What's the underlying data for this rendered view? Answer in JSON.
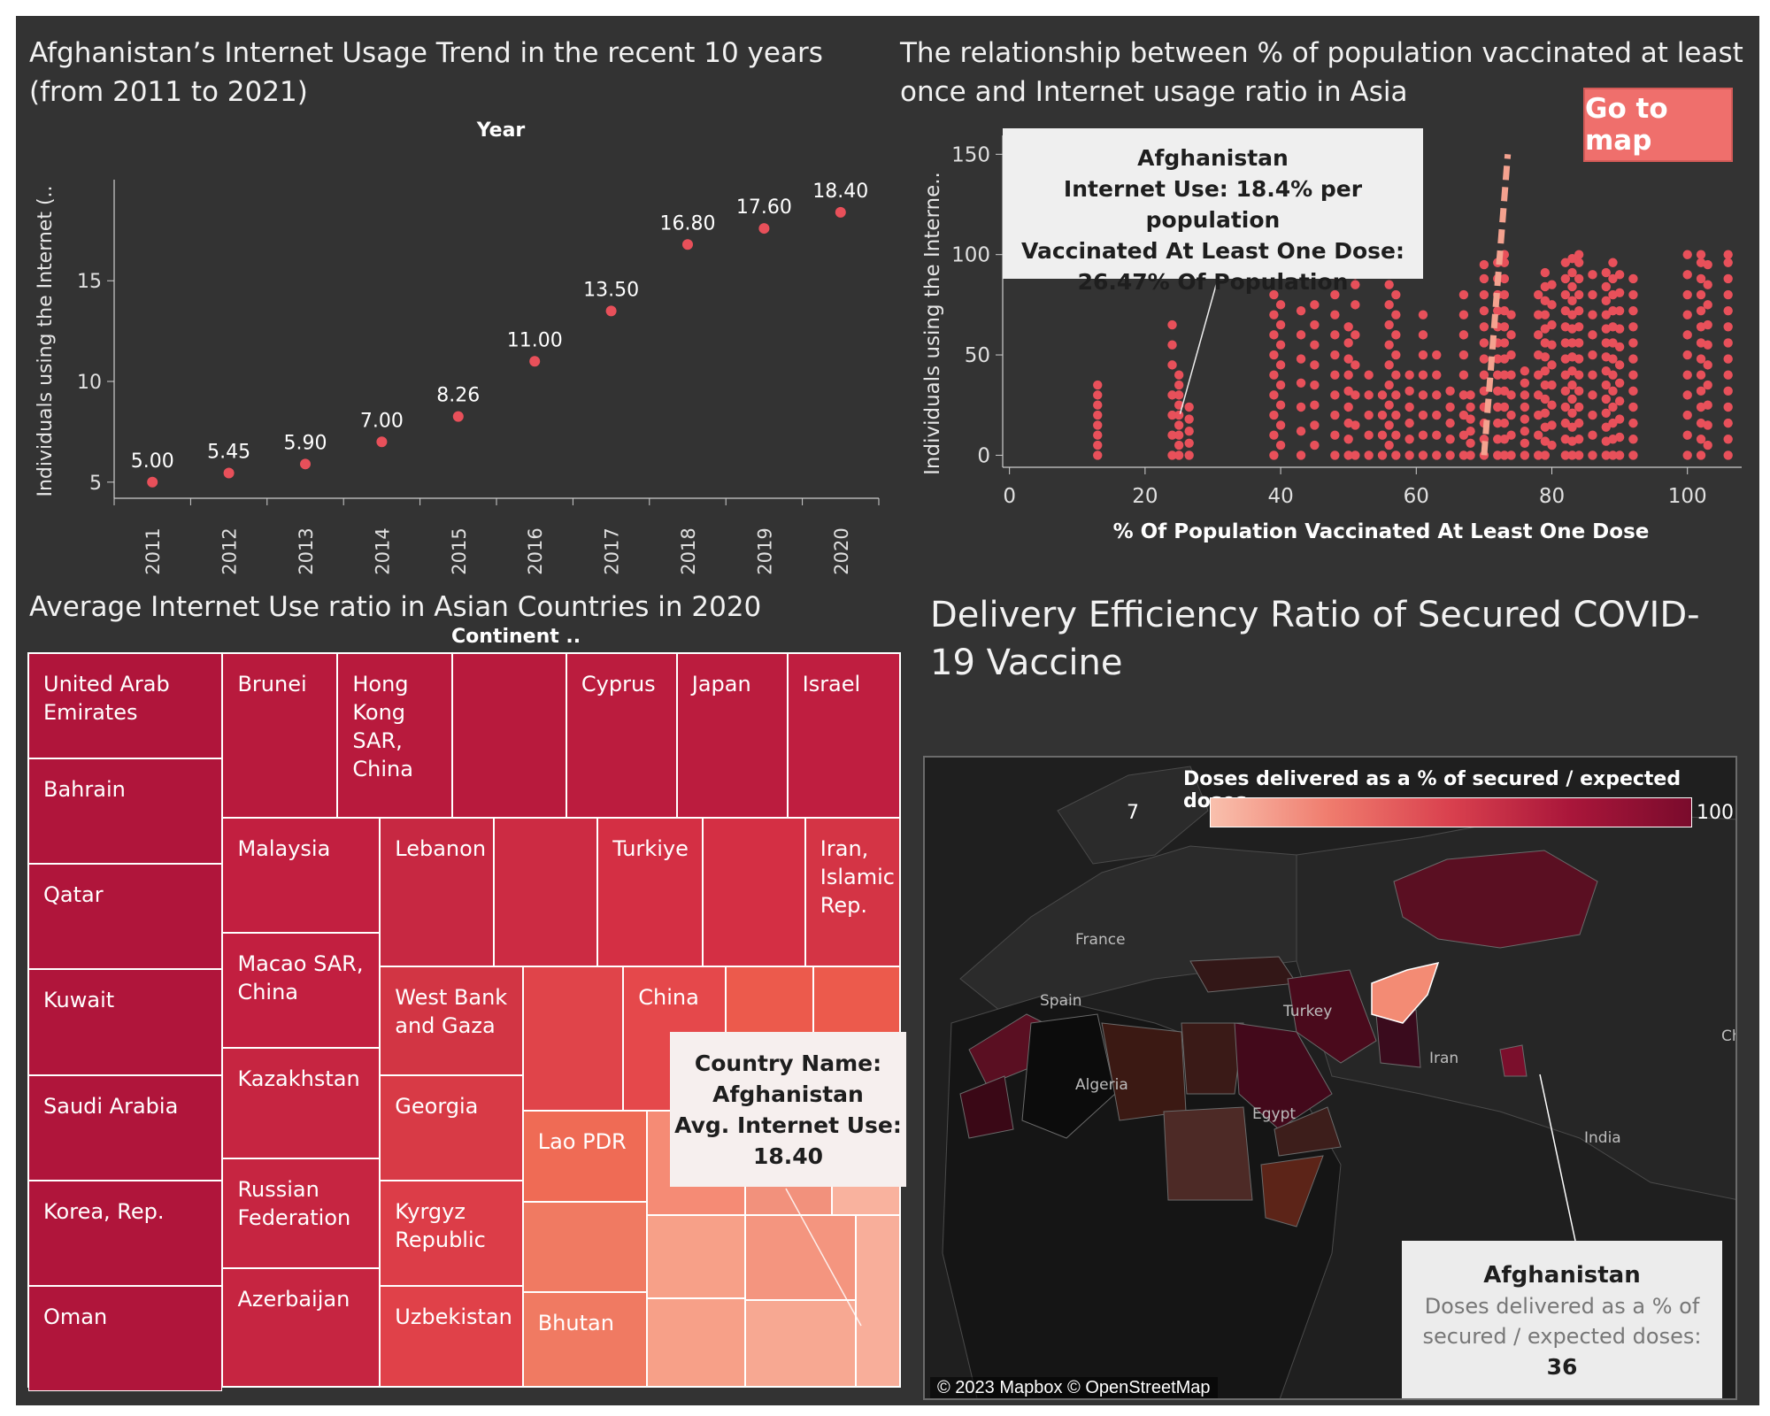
{
  "chart_data": [
    {
      "type": "scatter",
      "title": "Afghanistan’s Internet Usage Trend in the recent 10 years (from 2011 to 2021)",
      "column_header": "Year",
      "ylabel": "Individuals using the Internet (..",
      "x": [
        "2011",
        "2012",
        "2013",
        "2014",
        "2015",
        "2016",
        "2017",
        "2018",
        "2019",
        "2020"
      ],
      "values": [
        5.0,
        5.45,
        5.9,
        7.0,
        8.26,
        11.0,
        13.5,
        16.8,
        17.6,
        18.4
      ],
      "data_labels": [
        "5.00",
        "5.45",
        "5.90",
        "7.00",
        "8.26",
        "11.00",
        "13.50",
        "16.80",
        "17.60",
        "18.40"
      ],
      "y_ticks": [
        "5",
        "10",
        "15"
      ],
      "ylim": [
        4.2,
        19.8
      ],
      "color": "#e8505a"
    },
    {
      "type": "scatter",
      "title": "The relationship between % of population vaccinated at least once and Internet usage ratio in Asia",
      "xlabel": "% Of Population Vaccinated At Least One Dose",
      "ylabel": "Individuals using the Interne..",
      "x_ticks": [
        "0",
        "20",
        "40",
        "60",
        "80",
        "100"
      ],
      "y_ticks": [
        "0",
        "50",
        "100",
        "150"
      ],
      "xlim": [
        -1,
        108
      ],
      "ylim": [
        -6,
        155
      ],
      "columns": [
        {
          "x": 13,
          "y": [
            0,
            5,
            10,
            15,
            20,
            25,
            30,
            35
          ]
        },
        {
          "x": 24,
          "y": [
            0,
            10,
            20,
            30,
            45,
            55,
            65
          ]
        },
        {
          "x": 25,
          "y": [
            0,
            5,
            10,
            15,
            20,
            25,
            30,
            35,
            40
          ]
        },
        {
          "x": 26.5,
          "y": [
            0,
            6,
            12,
            18,
            24
          ]
        },
        {
          "x": 39,
          "y": [
            0,
            10,
            20,
            30,
            40,
            50,
            60,
            70,
            80
          ]
        },
        {
          "x": 40,
          "y": [
            5,
            15,
            25,
            35,
            45,
            55,
            65,
            75
          ]
        },
        {
          "x": 43,
          "y": [
            0,
            12,
            24,
            36,
            48,
            60,
            72
          ]
        },
        {
          "x": 45,
          "y": [
            5,
            15,
            25,
            35,
            45,
            55,
            65,
            75
          ]
        },
        {
          "x": 48,
          "y": [
            0,
            10,
            20,
            30,
            40,
            50,
            60,
            70,
            80,
            90
          ]
        },
        {
          "x": 50,
          "y": [
            0,
            8,
            16,
            24,
            32,
            40,
            48,
            56,
            64
          ]
        },
        {
          "x": 51,
          "y": [
            0,
            15,
            30,
            45,
            60,
            75,
            85,
            90
          ]
        },
        {
          "x": 53,
          "y": [
            0,
            10,
            20,
            30,
            40
          ]
        },
        {
          "x": 55,
          "y": [
            0,
            10,
            20,
            30
          ]
        },
        {
          "x": 56,
          "y": [
            5,
            15,
            25,
            35,
            45,
            55,
            65,
            75,
            85,
            92
          ]
        },
        {
          "x": 57,
          "y": [
            0,
            10,
            20,
            30,
            40,
            50,
            60,
            70,
            80
          ]
        },
        {
          "x": 59,
          "y": [
            0,
            8,
            16,
            24,
            32,
            40
          ]
        },
        {
          "x": 61,
          "y": [
            0,
            10,
            20,
            30,
            40,
            50,
            60,
            70
          ]
        },
        {
          "x": 63,
          "y": [
            0,
            10,
            20,
            30,
            40,
            50
          ]
        },
        {
          "x": 65,
          "y": [
            0,
            8,
            16,
            24,
            32
          ]
        },
        {
          "x": 67,
          "y": [
            0,
            10,
            20,
            30,
            40,
            50,
            60,
            70,
            80
          ]
        },
        {
          "x": 68,
          "y": [
            0,
            6,
            12,
            18,
            24,
            30
          ]
        },
        {
          "x": 70,
          "y": [
            0,
            8,
            16,
            24,
            32,
            40,
            48,
            56,
            64,
            72,
            80,
            88,
            95
          ]
        },
        {
          "x": 72,
          "y": [
            0,
            8,
            16,
            24,
            32,
            40,
            48,
            56,
            64,
            72,
            80,
            88,
            96
          ]
        },
        {
          "x": 73,
          "y": [
            0,
            8,
            16,
            24,
            32,
            40,
            48,
            56,
            64,
            72,
            80,
            88,
            96,
            100
          ]
        },
        {
          "x": 74,
          "y": [
            0,
            10,
            20,
            30,
            40,
            50,
            60,
            70
          ]
        },
        {
          "x": 76,
          "y": [
            0,
            6,
            12,
            18,
            24,
            30,
            36,
            42
          ]
        },
        {
          "x": 78,
          "y": [
            0,
            10,
            20,
            30,
            40,
            50,
            60,
            70,
            80
          ]
        },
        {
          "x": 79,
          "y": [
            0,
            7,
            14,
            21,
            28,
            35,
            42,
            49,
            56,
            63,
            70,
            77,
            84,
            91
          ]
        },
        {
          "x": 80,
          "y": [
            5,
            15,
            25,
            35,
            45,
            55,
            65,
            75,
            85
          ]
        },
        {
          "x": 82,
          "y": [
            0,
            8,
            16,
            24,
            32,
            40,
            48,
            56,
            64,
            72,
            80,
            88,
            96
          ]
        },
        {
          "x": 83,
          "y": [
            0,
            7,
            14,
            21,
            28,
            35,
            42,
            49,
            56,
            63,
            70,
            77,
            84,
            91,
            98
          ]
        },
        {
          "x": 84,
          "y": [
            0,
            8,
            16,
            24,
            32,
            40,
            48,
            56,
            64,
            72,
            80,
            88,
            96,
            100
          ]
        },
        {
          "x": 86,
          "y": [
            0,
            10,
            20,
            30,
            40,
            50,
            60,
            70,
            80,
            90
          ]
        },
        {
          "x": 88,
          "y": [
            0,
            7,
            14,
            21,
            28,
            35,
            42,
            49,
            56,
            63,
            70,
            77,
            84,
            91
          ]
        },
        {
          "x": 89,
          "y": [
            0,
            8,
            16,
            24,
            32,
            40,
            48,
            56,
            64,
            72,
            80,
            88,
            96
          ]
        },
        {
          "x": 90,
          "y": [
            0,
            9,
            18,
            27,
            36,
            45,
            54,
            63,
            72,
            81,
            90
          ]
        },
        {
          "x": 92,
          "y": [
            0,
            8,
            16,
            24,
            32,
            40,
            48,
            56,
            64,
            72,
            80,
            88
          ]
        },
        {
          "x": 100,
          "y": [
            0,
            10,
            20,
            30,
            40,
            50,
            60,
            70,
            80,
            90,
            100
          ]
        },
        {
          "x": 102,
          "y": [
            0,
            8,
            16,
            24,
            32,
            40,
            48,
            56,
            64,
            72,
            80,
            88,
            96,
            100
          ]
        },
        {
          "x": 103,
          "y": [
            5,
            15,
            25,
            35,
            45,
            55,
            65,
            75,
            85,
            95
          ]
        },
        {
          "x": 106,
          "y": [
            0,
            8,
            16,
            24,
            32,
            40,
            48,
            56,
            64,
            72,
            80,
            88,
            96,
            100
          ]
        }
      ],
      "trend_line": {
        "x1": 70,
        "y1": 0,
        "x2": 73.5,
        "y2": 150
      },
      "tooltip": [
        "Afghanistan",
        "Internet Use: 18.4% per population",
        "Vaccinated At Least One Dose:",
        "26.47% Of Population"
      ],
      "highlight": {
        "x": 26.47,
        "y": 18.4
      },
      "color": "#e8505a"
    },
    {
      "type": "treemap",
      "title": "Average Internet Use ratio in Asian Countries in 2020",
      "column_header": "Continent ..",
      "tooltip": [
        "Country Name:",
        "Afghanistan",
        "Avg. Internet Use:",
        "18.40"
      ],
      "cells": [
        {
          "label": "United Arab\nEmirates",
          "color": "#b0153b"
        },
        {
          "label": "Bahrain",
          "color": "#b0153b"
        },
        {
          "label": "Qatar",
          "color": "#b0153b"
        },
        {
          "label": "Kuwait",
          "color": "#b0153b"
        },
        {
          "label": "Saudi Arabia",
          "color": "#b0153b"
        },
        {
          "label": "Korea, Rep.",
          "color": "#b0153b"
        },
        {
          "label": "Oman",
          "color": "#b0153b"
        },
        {
          "label": "Brunei",
          "color": "#b81a3d"
        },
        {
          "label": "Hong\nKong\nSAR,\nChina",
          "color": "#b81a3d"
        },
        {
          "label": "",
          "color": "#b81a3d"
        },
        {
          "label": "Cyprus",
          "color": "#bb1c3e"
        },
        {
          "label": "Japan",
          "color": "#bb1c3e"
        },
        {
          "label": "Israel",
          "color": "#bf1e40"
        },
        {
          "label": "Malaysia",
          "color": "#c21f40"
        },
        {
          "label": "Macao SAR,\nChina",
          "color": "#c21f40"
        },
        {
          "label": "Kazakhstan",
          "color": "#c62541"
        },
        {
          "label": "Russian\nFederation",
          "color": "#c62541"
        },
        {
          "label": "Azerbaijan",
          "color": "#c62541"
        },
        {
          "label": "Lebanon",
          "color": "#c72842"
        },
        {
          "label": "",
          "color": "#cc2b43"
        },
        {
          "label": "Turkiye",
          "color": "#d42f44"
        },
        {
          "label": "",
          "color": "#d42f44"
        },
        {
          "label": "Iran,\nIslamic\nRep.",
          "color": "#d43445"
        },
        {
          "label": "West Bank\nand Gaza",
          "color": "#d23544"
        },
        {
          "label": "Georgia",
          "color": "#d83a46"
        },
        {
          "label": "Kyrgyz\nRepublic",
          "color": "#dc3d48"
        },
        {
          "label": "Uzbekistan",
          "color": "#e04149"
        },
        {
          "label": "",
          "color": "#e0444a"
        },
        {
          "label": "China",
          "color": "#e5484b"
        },
        {
          "label": "",
          "color": "#ec5a4c"
        },
        {
          "label": "",
          "color": "#ec5a4c"
        },
        {
          "label": "Lao PDR",
          "color": "#ef6b55"
        },
        {
          "label": "",
          "color": "#f07a62"
        },
        {
          "label": "Bhutan",
          "color": "#f07a62"
        },
        {
          "label": "",
          "color": "#f58b75"
        },
        {
          "label": "",
          "color": "#f7a088"
        },
        {
          "label": "",
          "color": "#f7a088"
        },
        {
          "label": "",
          "color": "#f2917c"
        },
        {
          "label": "",
          "color": "#f9b29e"
        },
        {
          "label": "",
          "color": "#f4957f"
        },
        {
          "label": "",
          "color": "#f7a892"
        },
        {
          "label": "",
          "color": "#f8ae9a"
        },
        {
          "label": "",
          "color": "#f47f66"
        },
        {
          "label": "",
          "color": "#f3846a"
        },
        {
          "label": "",
          "color": "#ef6c55"
        }
      ]
    },
    {
      "type": "map",
      "title": "Delivery Efficiency Ratio of Secured COVID-19 Vaccine",
      "legend_title": "Doses delivered as a % of secured / expected doses",
      "legend_min": "7",
      "legend_max": "100",
      "legend_colors": [
        "#f9c0ad",
        "#ef7b6d",
        "#d9404e",
        "#a9163a",
        "#7a0b2c"
      ],
      "place_labels": [
        "France",
        "Spain",
        "Turkey",
        "Algeria",
        "Egypt",
        "Iran",
        "India",
        "Chi"
      ],
      "attribution": "© 2023 Mapbox © OpenStreetMap",
      "tooltip": {
        "country": "Afghanistan",
        "measure": "Doses delivered as a % of secured / expected doses:",
        "value": "36"
      },
      "highlight_color": "#f38b74"
    }
  ],
  "buttons": {
    "go_to_map": "Go to map"
  }
}
